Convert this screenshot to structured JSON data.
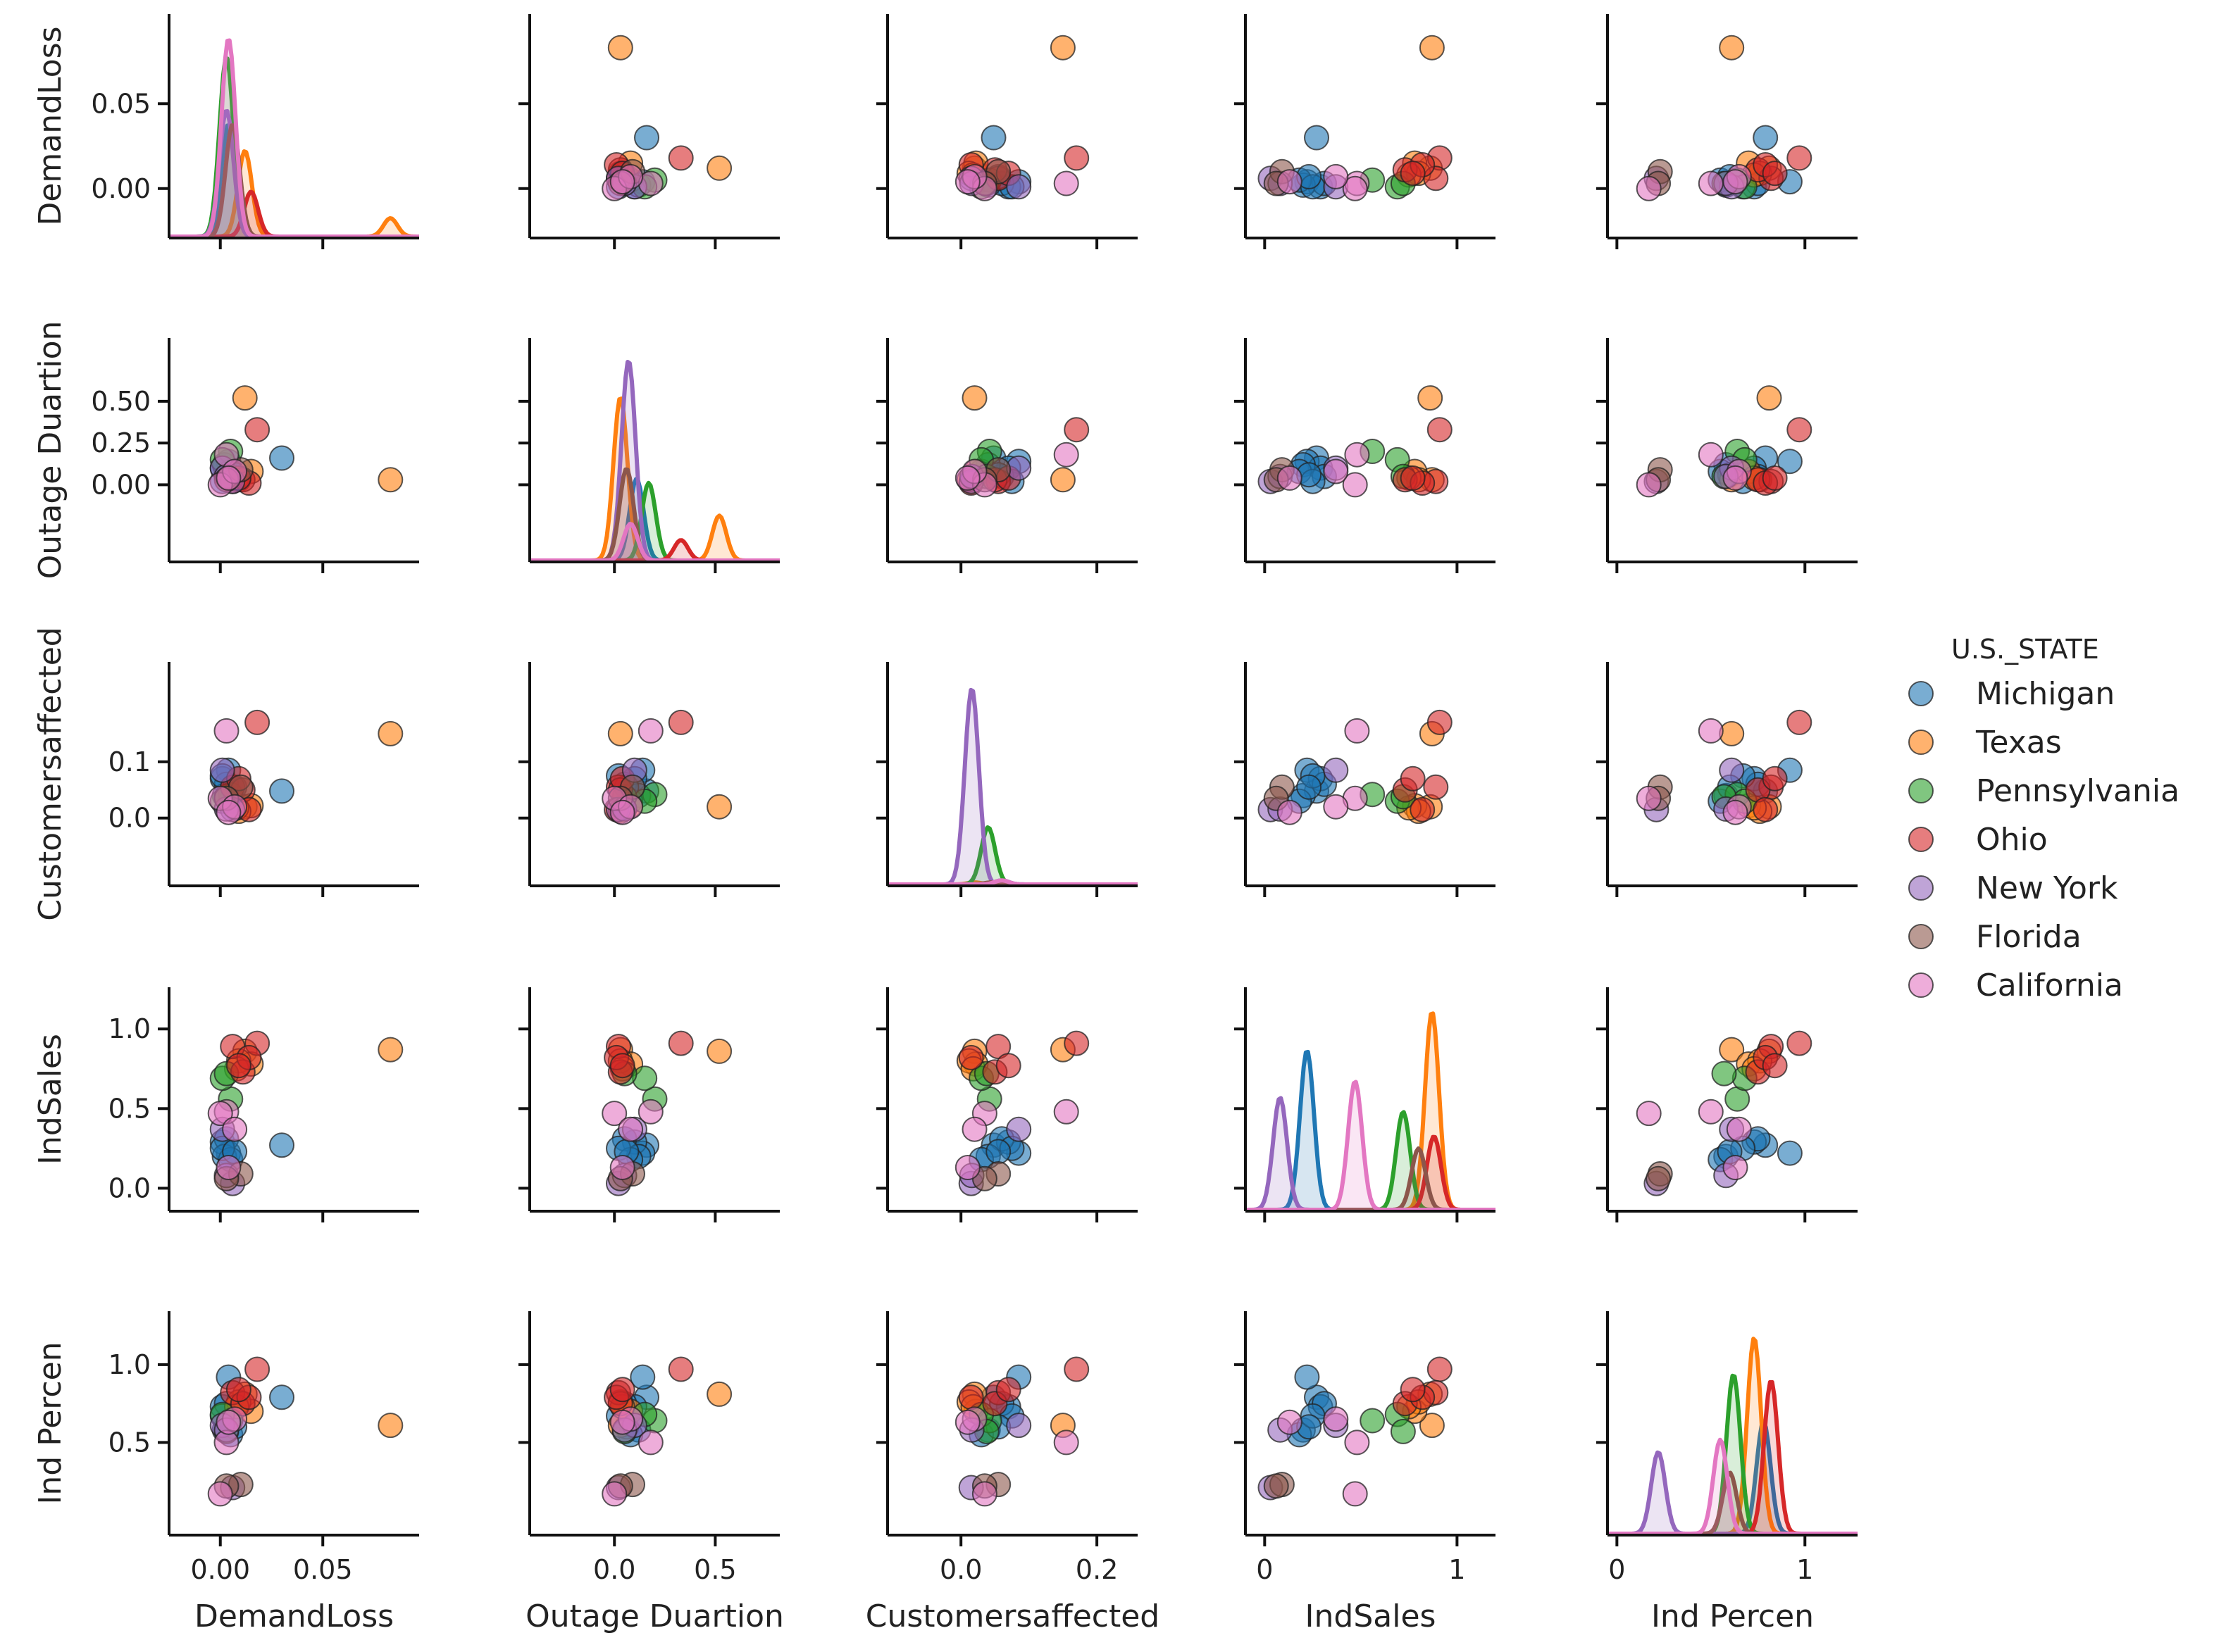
{
  "chart_data": {
    "type": "scatter",
    "title": "",
    "variables": [
      "DemandLoss",
      "Outage Duartion",
      "Customersaffected",
      "IndSales",
      "Ind Percen"
    ],
    "axis_ranges": [
      [
        -0.025,
        0.097
      ],
      [
        -0.42,
        0.82
      ],
      [
        -0.108,
        0.26
      ],
      [
        -0.1,
        1.2
      ],
      [
        -0.05,
        1.28
      ]
    ],
    "row_tick_values": [
      [
        0.0,
        0.05
      ],
      [
        0.0,
        0.25,
        0.5
      ],
      [
        0.0,
        0.1
      ],
      [
        0.0,
        0.5,
        1.0
      ],
      [
        0.5,
        1.0
      ]
    ],
    "row_tick_labels": [
      [
        "0.00",
        "0.05"
      ],
      [
        "0.00",
        "0.25",
        "0.50"
      ],
      [
        "0.0",
        "0.1"
      ],
      [
        "0.0",
        "0.5",
        "1.0"
      ],
      [
        "0.5",
        "1.0"
      ]
    ],
    "col_tick_values": [
      [
        0.0,
        0.05
      ],
      [
        0.0,
        0.5
      ],
      [
        0.0,
        0.2
      ],
      [
        0.0,
        1.0
      ],
      [
        0.0,
        1.0
      ]
    ],
    "col_tick_labels": [
      [
        "0.00",
        "0.05"
      ],
      [
        "0.0",
        "0.5"
      ],
      [
        "0.0",
        "0.2"
      ],
      [
        "0",
        "1"
      ],
      [
        "0",
        "1"
      ]
    ],
    "diagonal": "kde",
    "legend": {
      "title": "U.S._STATE",
      "placement": "right",
      "entries": [
        {
          "name": "Michigan",
          "color": "#1f77b4"
        },
        {
          "name": "Texas",
          "color": "#ff7f0e"
        },
        {
          "name": "Pennsylvania",
          "color": "#2ca02c"
        },
        {
          "name": "Ohio",
          "color": "#d62728"
        },
        {
          "name": "New York",
          "color": "#9467bd"
        },
        {
          "name": "Florida",
          "color": "#8c564b"
        },
        {
          "name": "California",
          "color": "#e377c2"
        }
      ]
    },
    "point_columns": [
      "DemandLoss",
      "Outage Duartion",
      "Customersaffected",
      "IndSales",
      "Ind Percen"
    ],
    "series": [
      {
        "name": "Michigan",
        "color": "#1f77b4",
        "points": [
          [
            0.03,
            0.16,
            0.048,
            0.27,
            0.79
          ],
          [
            0.004,
            0.14,
            0.085,
            0.22,
            0.92
          ],
          [
            0.001,
            0.1,
            0.07,
            0.29,
            0.73
          ],
          [
            0.003,
            0.05,
            0.06,
            0.31,
            0.75
          ],
          [
            0.002,
            0.12,
            0.04,
            0.2,
            0.58
          ],
          [
            0.005,
            0.08,
            0.03,
            0.18,
            0.55
          ],
          [
            0.001,
            0.02,
            0.075,
            0.25,
            0.67
          ],
          [
            0.007,
            0.06,
            0.055,
            0.23,
            0.6
          ]
        ]
      },
      {
        "name": "Texas",
        "color": "#ff7f0e",
        "points": [
          [
            0.083,
            0.03,
            0.15,
            0.87,
            0.61
          ],
          [
            0.012,
            0.52,
            0.02,
            0.86,
            0.81
          ],
          [
            0.015,
            0.08,
            0.022,
            0.78,
            0.7
          ],
          [
            0.009,
            0.03,
            0.012,
            0.8,
            0.76
          ],
          [
            0.008,
            0.04,
            0.018,
            0.75,
            0.73
          ]
        ]
      },
      {
        "name": "Pennsylvania",
        "color": "#2ca02c",
        "points": [
          [
            0.005,
            0.2,
            0.042,
            0.56,
            0.64
          ],
          [
            0.001,
            0.15,
            0.03,
            0.69,
            0.68
          ],
          [
            0.003,
            0.05,
            0.038,
            0.72,
            0.57
          ]
        ]
      },
      {
        "name": "Ohio",
        "color": "#d62728",
        "points": [
          [
            0.018,
            0.33,
            0.17,
            0.91,
            0.97
          ],
          [
            0.006,
            0.02,
            0.055,
            0.89,
            0.82
          ],
          [
            0.011,
            0.03,
            0.05,
            0.73,
            0.75
          ],
          [
            0.014,
            0.01,
            0.015,
            0.82,
            0.79
          ],
          [
            0.009,
            0.04,
            0.07,
            0.77,
            0.84
          ]
        ]
      },
      {
        "name": "New York",
        "color": "#9467bd",
        "points": [
          [
            0.001,
            0.1,
            0.085,
            0.37,
            0.61
          ],
          [
            0.006,
            0.02,
            0.015,
            0.03,
            0.21
          ],
          [
            0.003,
            0.05,
            0.016,
            0.08,
            0.58
          ]
        ]
      },
      {
        "name": "Florida",
        "color": "#8c564b",
        "points": [
          [
            0.01,
            0.09,
            0.055,
            0.09,
            0.23
          ],
          [
            0.003,
            0.03,
            0.035,
            0.06,
            0.22
          ]
        ]
      },
      {
        "name": "California",
        "color": "#e377c2",
        "points": [
          [
            0.003,
            0.18,
            0.155,
            0.48,
            0.5
          ],
          [
            0.0,
            0.0,
            0.035,
            0.47,
            0.17
          ],
          [
            0.007,
            0.08,
            0.02,
            0.37,
            0.65
          ],
          [
            0.004,
            0.04,
            0.01,
            0.13,
            0.63
          ]
        ]
      }
    ],
    "kde_peaks": {
      "DemandLoss": [
        {
          "state": "Michigan",
          "peak_x": 0.004,
          "rel_height": 0.55
        },
        {
          "state": "Texas",
          "peak_x": 0.012,
          "rel_height": 0.42
        },
        {
          "state": "Texas",
          "peak_x": 0.083,
          "rel_height": 0.09
        },
        {
          "state": "Pennsylvania",
          "peak_x": 0.003,
          "rel_height": 0.88
        },
        {
          "state": "Ohio",
          "peak_x": 0.015,
          "rel_height": 0.22
        },
        {
          "state": "New York",
          "peak_x": 0.003,
          "rel_height": 0.62
        },
        {
          "state": "Florida",
          "peak_x": 0.006,
          "rel_height": 0.55
        },
        {
          "state": "California",
          "peak_x": 0.004,
          "rel_height": 0.97
        }
      ],
      "Outage Duartion": [
        {
          "state": "Michigan",
          "peak_x": 0.11,
          "rel_height": 0.4
        },
        {
          "state": "Texas",
          "peak_x": 0.03,
          "rel_height": 0.8
        },
        {
          "state": "Texas",
          "peak_x": 0.52,
          "rel_height": 0.22
        },
        {
          "state": "Pennsylvania",
          "peak_x": 0.17,
          "rel_height": 0.38
        },
        {
          "state": "Ohio",
          "peak_x": 0.33,
          "rel_height": 0.1
        },
        {
          "state": "New York",
          "peak_x": 0.07,
          "rel_height": 0.98
        },
        {
          "state": "Florida",
          "peak_x": 0.06,
          "rel_height": 0.45
        },
        {
          "state": "California",
          "peak_x": 0.08,
          "rel_height": 0.18
        }
      ],
      "Customersaffected": [
        {
          "state": "Michigan",
          "peak_x": 0.06,
          "rel_height": 0.02
        },
        {
          "state": "Texas",
          "peak_x": 0.02,
          "rel_height": 0.01
        },
        {
          "state": "Pennsylvania",
          "peak_x": 0.04,
          "rel_height": 0.28
        },
        {
          "state": "Ohio",
          "peak_x": 0.05,
          "rel_height": 0.01
        },
        {
          "state": "New York",
          "peak_x": 0.016,
          "rel_height": 0.96
        },
        {
          "state": "Florida",
          "peak_x": 0.045,
          "rel_height": 0.01
        },
        {
          "state": "California",
          "peak_x": 0.06,
          "rel_height": 0.02
        }
      ],
      "IndSales": [
        {
          "state": "Michigan",
          "peak_x": 0.22,
          "rel_height": 0.78
        },
        {
          "state": "Texas",
          "peak_x": 0.87,
          "rel_height": 0.97
        },
        {
          "state": "Pennsylvania",
          "peak_x": 0.72,
          "rel_height": 0.48
        },
        {
          "state": "Ohio",
          "peak_x": 0.88,
          "rel_height": 0.36
        },
        {
          "state": "New York",
          "peak_x": 0.08,
          "rel_height": 0.55
        },
        {
          "state": "Florida",
          "peak_x": 0.8,
          "rel_height": 0.3
        },
        {
          "state": "California",
          "peak_x": 0.47,
          "rel_height": 0.63
        }
      ],
      "Ind Percen": [
        {
          "state": "Michigan",
          "peak_x": 0.78,
          "rel_height": 0.55
        },
        {
          "state": "Texas",
          "peak_x": 0.73,
          "rel_height": 0.96
        },
        {
          "state": "Pennsylvania",
          "peak_x": 0.62,
          "rel_height": 0.78
        },
        {
          "state": "Ohio",
          "peak_x": 0.82,
          "rel_height": 0.75
        },
        {
          "state": "New York",
          "peak_x": 0.22,
          "rel_height": 0.4
        },
        {
          "state": "Florida",
          "peak_x": 0.6,
          "rel_height": 0.3
        },
        {
          "state": "California",
          "peak_x": 0.55,
          "rel_height": 0.46
        }
      ]
    }
  }
}
